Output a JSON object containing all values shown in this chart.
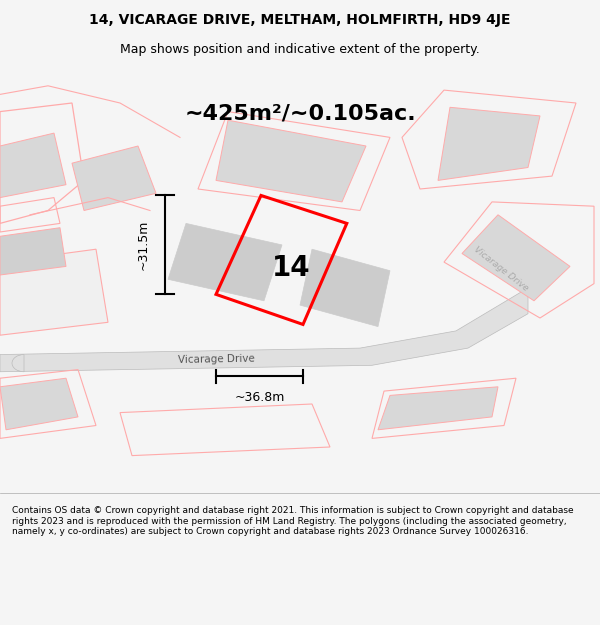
{
  "title_line1": "14, VICARAGE DRIVE, MELTHAM, HOLMFIRTH, HD9 4JE",
  "title_line2": "Map shows position and indicative extent of the property.",
  "area_text": "~425m²/~0.105ac.",
  "label_14": "14",
  "label_width": "~36.8m",
  "label_height": "~31.5m",
  "road_label": "Vicarage Drive",
  "road_label2": "Vicarage Drive",
  "footer": "Contains OS data © Crown copyright and database right 2021. This information is subject to Crown copyright and database rights 2023 and is reproduced with the permission of HM Land Registry. The polygons (including the associated geometry, namely x, y co-ordinates) are subject to Crown copyright and database rights 2023 Ordnance Survey 100026316.",
  "bg_color": "#f5f5f5",
  "map_bg": "#ffffff",
  "plot_color": "#ff0000",
  "building_color": "#d3d3d3",
  "road_color": "#e0e0e0",
  "outline_color": "#ffaaaa",
  "figsize": [
    6.0,
    6.25
  ],
  "dpi": 100
}
